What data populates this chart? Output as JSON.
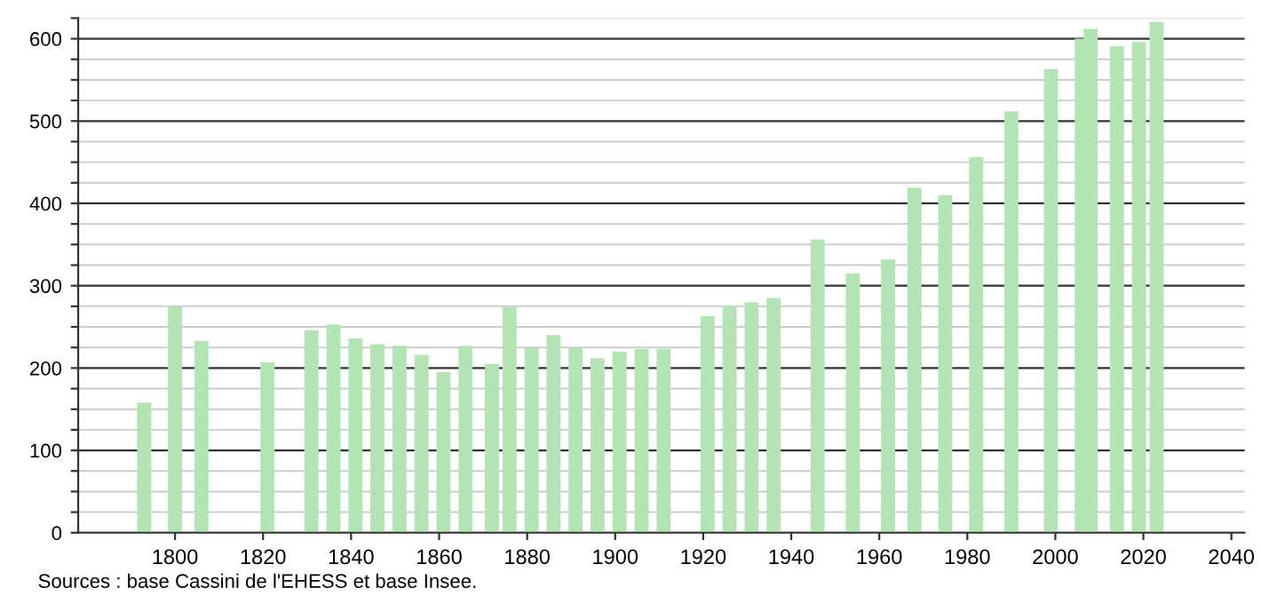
{
  "chart_data": {
    "type": "bar",
    "x": [
      1793,
      1800,
      1806,
      1821,
      1831,
      1836,
      1841,
      1846,
      1851,
      1856,
      1861,
      1866,
      1872,
      1876,
      1881,
      1886,
      1891,
      1896,
      1901,
      1906,
      1911,
      1921,
      1926,
      1931,
      1936,
      1946,
      1954,
      1962,
      1968,
      1975,
      1982,
      1990,
      1999,
      2006,
      2008,
      2014,
      2019,
      2023
    ],
    "values": [
      158,
      276,
      233,
      207,
      246,
      253,
      236,
      229,
      227,
      216,
      195,
      227,
      205,
      274,
      224,
      240,
      224,
      212,
      220,
      223,
      223,
      263,
      276,
      280,
      285,
      356,
      315,
      332,
      419,
      410,
      456,
      512,
      563,
      600,
      612,
      591,
      596,
      620
    ],
    "color": "#b3e4b3",
    "xlim": [
      1778,
      2043
    ],
    "xticks": [
      1800,
      1820,
      1840,
      1860,
      1880,
      1900,
      1920,
      1940,
      1960,
      1980,
      2000,
      2020,
      2040
    ],
    "ylim": [
      0,
      625
    ],
    "yticks": [
      0,
      {
        "value": 25,
        "label": null
      },
      {
        "value": 50,
        "label": null
      },
      {
        "value": 75,
        "label": null
      },
      100,
      {
        "value": 125,
        "label": null
      },
      {
        "value": 150,
        "label": null
      },
      {
        "value": 175,
        "label": null
      },
      200,
      {
        "value": 225,
        "label": null
      },
      {
        "value": 250,
        "label": null
      },
      {
        "value": 275,
        "label": null
      },
      300,
      {
        "value": 325,
        "label": null
      },
      {
        "value": 350,
        "label": null
      },
      {
        "value": 375,
        "label": null
      },
      400,
      {
        "value": 425,
        "label": null
      },
      {
        "value": 450,
        "label": null
      },
      {
        "value": 475,
        "label": null
      },
      500,
      {
        "value": 525,
        "label": null
      },
      {
        "value": 550,
        "label": null
      },
      {
        "value": 575,
        "label": null
      },
      600,
      {
        "value": 625,
        "label": null
      }
    ],
    "grid": "y",
    "annotations": [
      "Sources : base Cassini de l'EHESS et base Insee."
    ]
  }
}
